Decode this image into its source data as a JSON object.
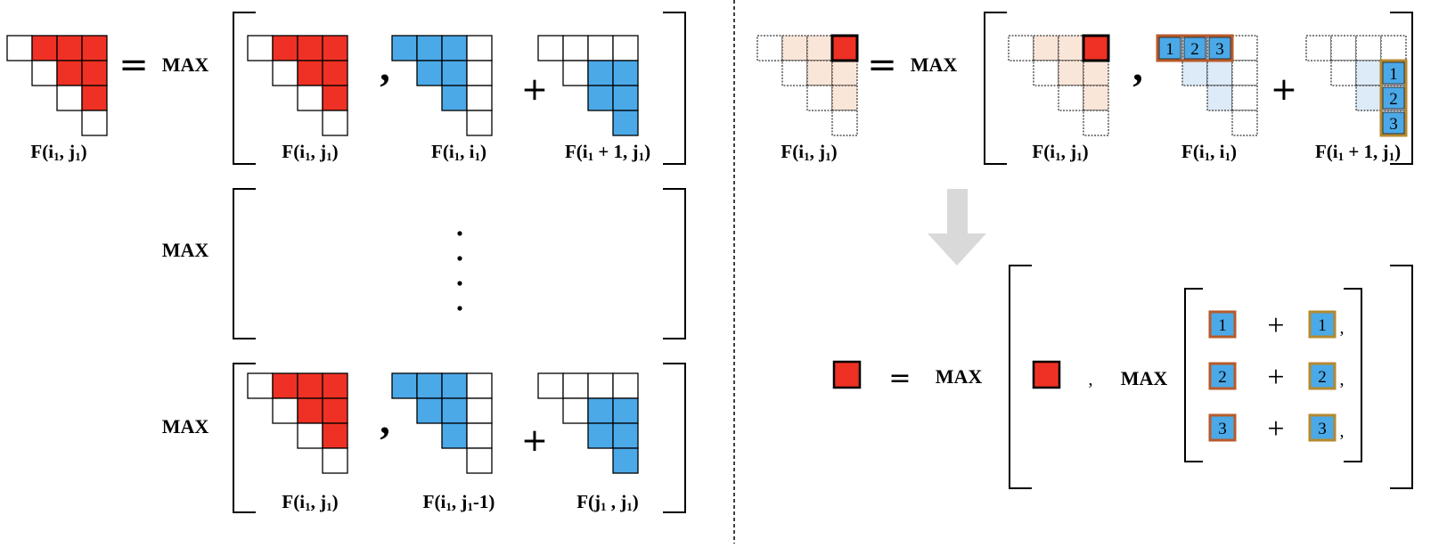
{
  "colors": {
    "red": "#ee3124",
    "blue": "#4ba9e8",
    "pale_red": "#fae6d9",
    "pale_blue": "#ddeaf7",
    "orange_outline": "#b85a2a",
    "gold_outline": "#b5892f",
    "arrow_gray": "#d9d9d9"
  },
  "text": {
    "max": "MAX",
    "equals": "=",
    "plus": "+",
    "comma": ",",
    "vdots": "⋮"
  },
  "left": {
    "lhs_label": {
      "pre": "F(i",
      "s1": "1",
      "mid": ", j",
      "s2": "1",
      "post": ")"
    },
    "row1": {
      "a": {
        "pre": "F(i",
        "s1": "1",
        "mid": ", j",
        "s2": "1",
        "post": ")"
      },
      "b": {
        "pre": "F(i",
        "s1": "1",
        "mid": ", i",
        "s2": "1",
        "post": ")"
      },
      "c": {
        "pre": "F(i",
        "s1": "1",
        "mid": " + 1, j",
        "s2": "1",
        "post": ")"
      }
    },
    "row3": {
      "a": {
        "pre": "F(i",
        "s1": "1",
        "mid": ", j",
        "s2": "1",
        "post": ")"
      },
      "b": {
        "pre": "F(i",
        "s1": "1",
        "mid": ", j",
        "s2": "1",
        "post": "-1)"
      },
      "c": {
        "pre": "F(j",
        "s1": "1",
        "mid": " , j",
        "s2": "1",
        "post": ")"
      }
    }
  },
  "right": {
    "lhs_label": {
      "pre": "F(i",
      "s1": "1",
      "mid": ", j",
      "s2": "1",
      "post": ")"
    },
    "top": {
      "a": {
        "pre": "F(i",
        "s1": "1",
        "mid": ", j",
        "s2": "1",
        "post": ")"
      },
      "b": {
        "pre": "F(i",
        "s1": "1",
        "mid": ", i",
        "s2": "1",
        "post": ")"
      },
      "c": {
        "pre": "F(i",
        "s1": "1",
        "mid": " + 1, j",
        "s2": "1",
        "post": ")"
      }
    },
    "row_numbers": [
      "1",
      "2",
      "3"
    ],
    "col_numbers": [
      "1",
      "2",
      "3"
    ],
    "pairs": [
      {
        "left": "1",
        "right": "1"
      },
      {
        "left": "2",
        "right": "2"
      },
      {
        "left": "3",
        "right": "3"
      }
    ]
  }
}
